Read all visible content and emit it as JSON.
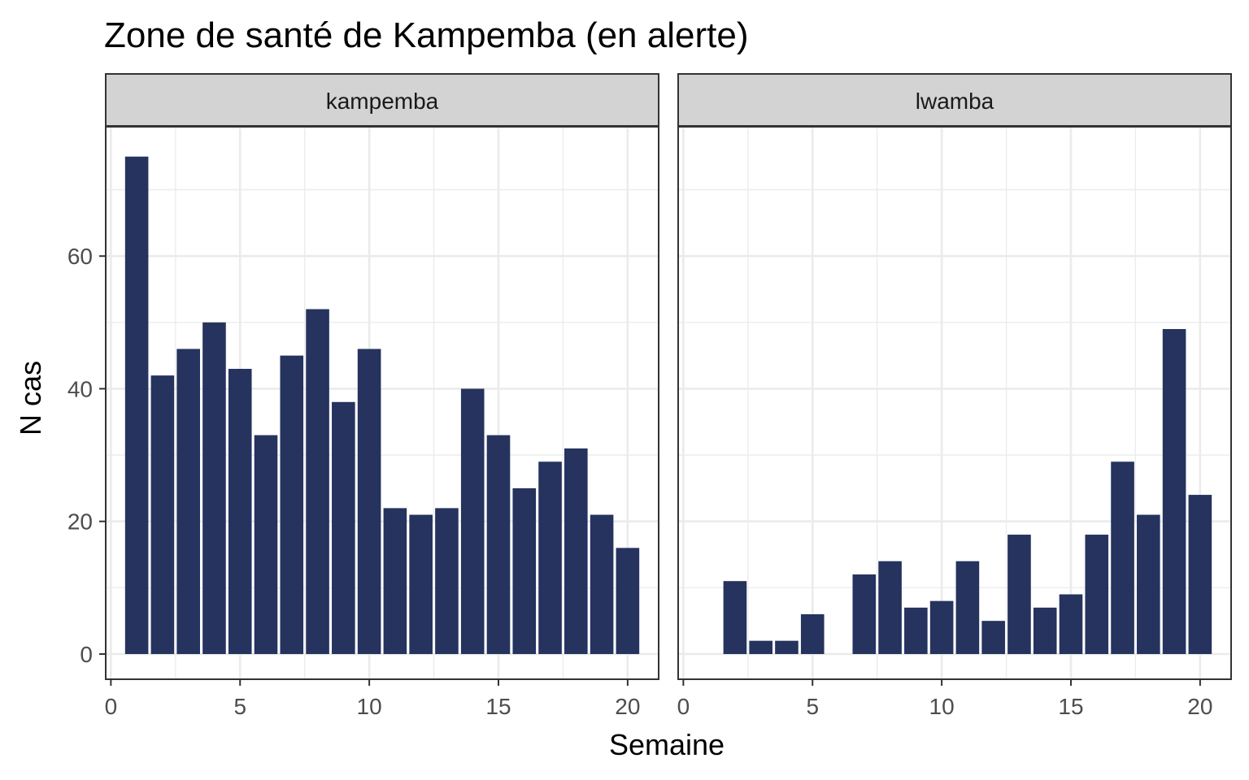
{
  "chart_data": {
    "type": "bar",
    "title": "Zone de santé de Kampemba (en alerte)",
    "xlabel": "Semaine",
    "ylabel": "N cas",
    "xlim": [
      -0.2,
      21.2
    ],
    "ylim": [
      -3.8,
      79.5
    ],
    "x_ticks": [
      0,
      5,
      10,
      15,
      20
    ],
    "y_ticks": [
      0,
      20,
      40,
      60
    ],
    "bar_color": "#25335e",
    "grid": true,
    "facets": [
      {
        "name": "kampemba",
        "x": [
          1,
          2,
          3,
          4,
          5,
          6,
          7,
          8,
          9,
          10,
          11,
          12,
          13,
          14,
          15,
          16,
          17,
          18,
          19,
          20
        ],
        "values": [
          75,
          42,
          46,
          50,
          43,
          33,
          45,
          52,
          38,
          46,
          22,
          21,
          22,
          40,
          33,
          25,
          29,
          31,
          21,
          16
        ]
      },
      {
        "name": "lwamba",
        "x": [
          2,
          3,
          4,
          5,
          7,
          8,
          9,
          10,
          11,
          12,
          13,
          14,
          15,
          16,
          17,
          18,
          19,
          20
        ],
        "values": [
          11,
          2,
          2,
          6,
          12,
          14,
          7,
          8,
          14,
          5,
          18,
          7,
          9,
          18,
          29,
          21,
          49,
          24
        ]
      }
    ]
  }
}
